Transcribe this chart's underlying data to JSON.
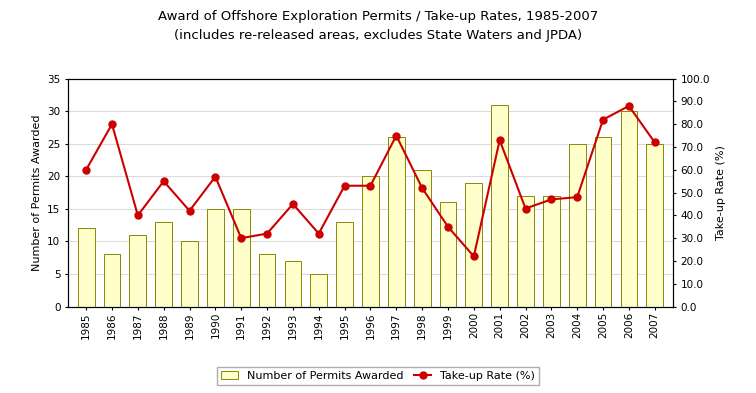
{
  "years": [
    1985,
    1986,
    1987,
    1988,
    1989,
    1990,
    1991,
    1992,
    1993,
    1994,
    1995,
    1996,
    1997,
    1998,
    1999,
    2000,
    2001,
    2002,
    2003,
    2004,
    2005,
    2006,
    2007
  ],
  "permits": [
    12,
    8,
    11,
    13,
    10,
    15,
    15,
    8,
    7,
    5,
    13,
    20,
    26,
    21,
    16,
    19,
    31,
    17,
    17,
    25,
    26,
    30,
    25
  ],
  "takup_rate": [
    60,
    80,
    40,
    55,
    42,
    57,
    30,
    32,
    45,
    32,
    53,
    53,
    75,
    52,
    35,
    22,
    73,
    43,
    47,
    48,
    82,
    88,
    72
  ],
  "title_line1": "Award of Offshore Exploration Permits / Take-up Rates, 1985-2007",
  "title_line2": "(includes re-released areas, excludes State Waters and JPDA)",
  "ylabel_left": "Number of Permits Awarded",
  "ylabel_right": "Take-up Rate (%)",
  "ylim_left": [
    0,
    35
  ],
  "ylim_right": [
    0.0,
    100.0
  ],
  "yticks_left": [
    0,
    5,
    10,
    15,
    20,
    25,
    30,
    35
  ],
  "yticks_right": [
    0.0,
    10.0,
    20.0,
    30.0,
    40.0,
    50.0,
    60.0,
    70.0,
    80.0,
    90.0,
    100.0
  ],
  "bar_color": "#FFFFCC",
  "bar_edge_color": "#888800",
  "line_color": "#CC0000",
  "line_marker": "o",
  "marker_face_color": "#CC0000",
  "marker_edge_color": "#CC0000",
  "background_color": "#FFFFFF",
  "legend_bar_label": "Number of Permits Awarded",
  "legend_line_label": "Take-up Rate (%)",
  "title_fontsize": 9.5,
  "axis_label_fontsize": 8,
  "tick_fontsize": 7.5
}
